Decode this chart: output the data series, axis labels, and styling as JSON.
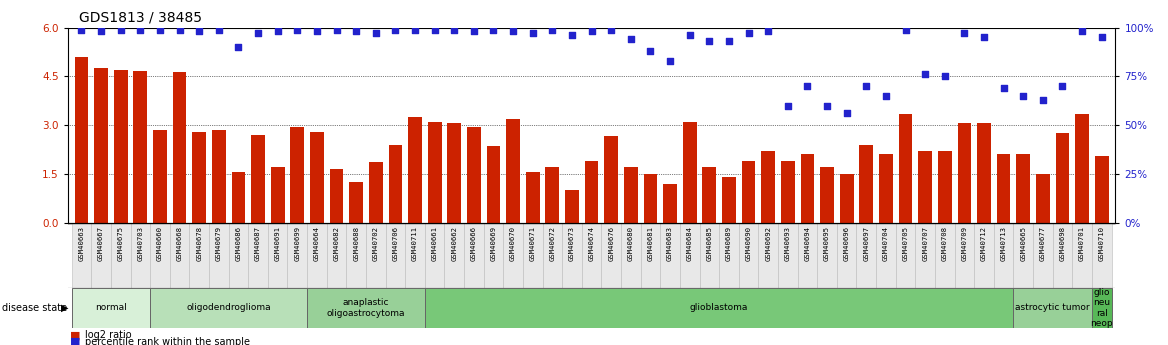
{
  "title": "GDS1813 / 38485",
  "samples": [
    "GSM40663",
    "GSM40667",
    "GSM40675",
    "GSM40703",
    "GSM40660",
    "GSM40668",
    "GSM40678",
    "GSM40679",
    "GSM40686",
    "GSM40687",
    "GSM40691",
    "GSM40699",
    "GSM40664",
    "GSM40682",
    "GSM40688",
    "GSM40702",
    "GSM40706",
    "GSM40711",
    "GSM40661",
    "GSM40662",
    "GSM40666",
    "GSM40669",
    "GSM40670",
    "GSM40671",
    "GSM40672",
    "GSM40673",
    "GSM40674",
    "GSM40676",
    "GSM40680",
    "GSM40681",
    "GSM40683",
    "GSM40684",
    "GSM40685",
    "GSM40689",
    "GSM40690",
    "GSM40692",
    "GSM40693",
    "GSM40694",
    "GSM40695",
    "GSM40696",
    "GSM40697",
    "GSM40704",
    "GSM40705",
    "GSM40707",
    "GSM40708",
    "GSM40709",
    "GSM40712",
    "GSM40713",
    "GSM40665",
    "GSM40677",
    "GSM40698",
    "GSM40701",
    "GSM40710"
  ],
  "log2_ratio": [
    5.1,
    4.75,
    4.7,
    4.65,
    2.85,
    4.62,
    2.8,
    2.85,
    1.55,
    2.7,
    1.7,
    2.95,
    2.8,
    1.65,
    1.25,
    1.85,
    2.4,
    3.25,
    3.1,
    3.05,
    2.95,
    2.35,
    3.2,
    1.55,
    1.7,
    1.0,
    1.9,
    2.65,
    1.7,
    1.5,
    1.2,
    3.1,
    1.7,
    1.4,
    1.9,
    2.2,
    1.9,
    2.1,
    1.7,
    1.5,
    2.4,
    2.1,
    3.35,
    2.2,
    2.2,
    3.05,
    3.05,
    2.1,
    2.1,
    1.5,
    2.75,
    3.35,
    2.05
  ],
  "percentile": [
    99,
    98,
    99,
    99,
    99,
    99,
    98,
    99,
    90,
    97,
    98,
    99,
    98,
    99,
    98,
    97,
    99,
    99,
    99,
    99,
    98,
    99,
    98,
    97,
    99,
    96,
    98,
    99,
    94,
    88,
    83,
    96,
    93,
    93,
    97,
    98,
    60,
    70,
    60,
    56,
    70,
    65,
    99,
    76,
    75,
    97,
    95,
    69,
    65,
    63,
    70,
    98,
    95
  ],
  "disease_groups": [
    {
      "label": "normal",
      "start": 0,
      "end": 4,
      "color": "#d8f0d8"
    },
    {
      "label": "oligodendroglioma",
      "start": 4,
      "end": 12,
      "color": "#b8e0b8"
    },
    {
      "label": "anaplastic\noligoastrocytoma",
      "start": 12,
      "end": 18,
      "color": "#98d098"
    },
    {
      "label": "glioblastoma",
      "start": 18,
      "end": 48,
      "color": "#78c878"
    },
    {
      "label": "astrocytic tumor",
      "start": 48,
      "end": 52,
      "color": "#98d098"
    },
    {
      "label": "glio\nneu\nral\nneop",
      "start": 52,
      "end": 53,
      "color": "#58b858"
    }
  ],
  "ylim_left": [
    0,
    6
  ],
  "ylim_right": [
    0,
    100
  ],
  "yticks_left": [
    0,
    1.5,
    3.0,
    4.5,
    6.0
  ],
  "yticks_right": [
    0,
    25,
    50,
    75,
    100
  ],
  "bar_color": "#cc2200",
  "dot_color": "#2222cc",
  "bg_color": "#ffffff"
}
